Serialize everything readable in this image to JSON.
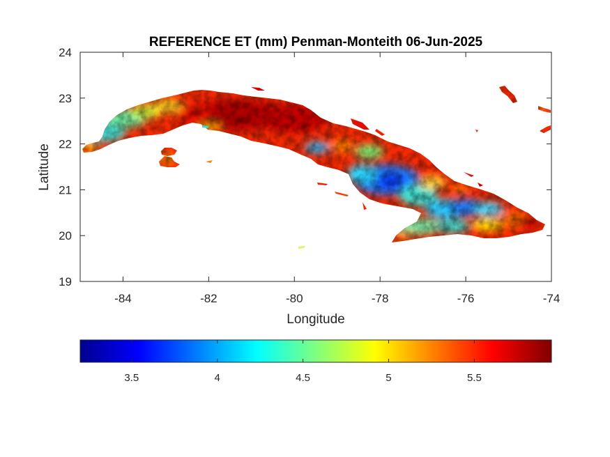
{
  "chart_data": {
    "type": "heatmap",
    "title": "REFERENCE ET (mm) Penman-Monteith 06-Jun-2025",
    "xlabel": "Longitude",
    "ylabel": "Latitude",
    "xlim": [
      -85,
      -74
    ],
    "ylim": [
      19,
      24
    ],
    "xticks": [
      -84,
      -82,
      -80,
      -78,
      -76,
      -74
    ],
    "yticks": [
      19,
      20,
      21,
      22,
      23,
      24
    ],
    "grid": false,
    "colormap": "jet",
    "colorbar": {
      "position": "bottom",
      "range": [
        3.2,
        5.95
      ],
      "ticks": [
        3.5,
        4,
        4.5,
        5,
        5.5
      ]
    },
    "regions": [
      {
        "name": "",
        "lon_range": [
          -85.0,
          -83.5
        ],
        "value_range": [
          4.0,
          5.6
        ]
      },
      {
        "name": "",
        "lon_range": [
          -82.5,
          -79.5
        ],
        "value_range": [
          5.2,
          5.95
        ]
      },
      {
        "name": "",
        "lon_range": [
          -79.5,
          -77.5
        ],
        "value_range": [
          3.6,
          5.5
        ]
      },
      {
        "name": "",
        "lon_range": [
          -77.5,
          -74.0
        ],
        "value_range": [
          3.7,
          5.8
        ]
      }
    ]
  }
}
